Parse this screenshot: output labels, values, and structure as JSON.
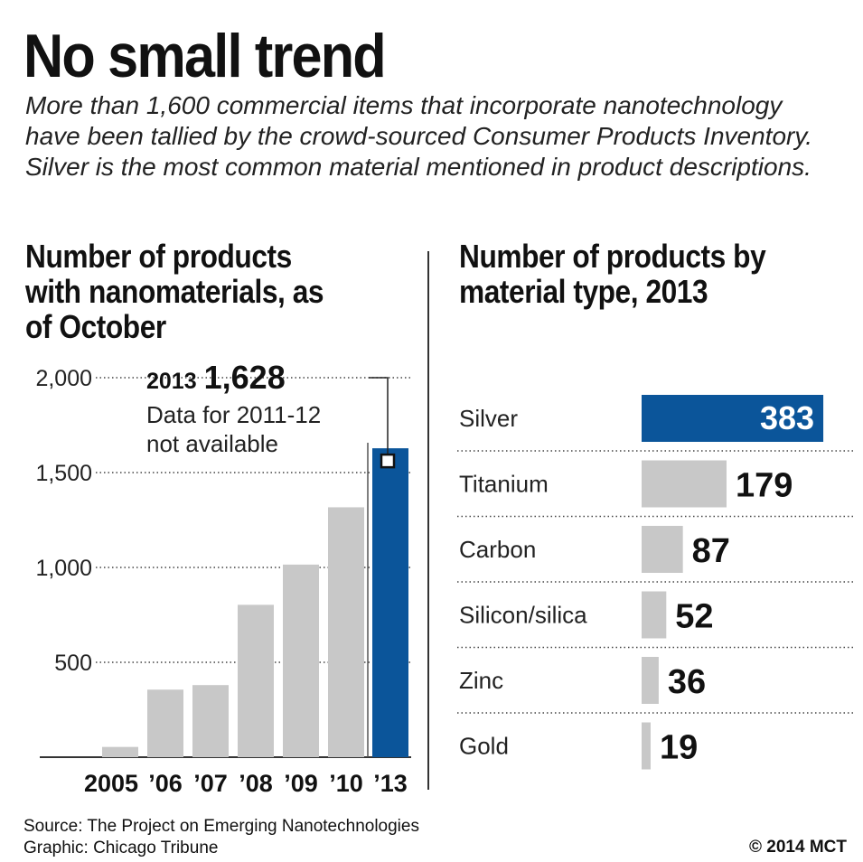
{
  "title": "No small trend",
  "subtitle": "More than 1,600 commercial items that incorporate nanotechnology have been tallied by the crowd-sourced Consumer Products Inventory. Silver is the most common material mentioned in product descriptions.",
  "source": "Source: The Project on Emerging Nanotechnologies",
  "graphic_credit": "Graphic: Chicago Tribune",
  "copyright": "© 2014 MCT",
  "colors": {
    "highlight": "#0b559a",
    "bar": "#c8c8c8",
    "text": "#111111",
    "grid": "#444444"
  },
  "chart_data": [
    {
      "type": "bar",
      "title": "Number of products with nanomaterials, as of October",
      "categories": [
        "2005",
        "’06",
        "’07",
        "’08",
        "’09",
        "’10",
        "’13"
      ],
      "values": [
        54,
        356,
        380,
        803,
        1015,
        1317,
        1628
      ],
      "highlight_category": "’13",
      "ylim": [
        0,
        2000
      ],
      "yticks": [
        500,
        1000,
        1500,
        2000
      ],
      "ytick_labels": [
        "500",
        "1,000",
        "1,500",
        "2,000"
      ],
      "grid": true,
      "annotation": {
        "year": "2013",
        "value": "1,628",
        "note_line1": "Data for 2011-12",
        "note_line2": "not available"
      }
    },
    {
      "type": "bar",
      "orientation": "horizontal",
      "title": "Number of products by material type, 2013",
      "categories": [
        "Silver",
        "Titanium",
        "Carbon",
        "Silicon/silica",
        "Zinc",
        "Gold"
      ],
      "values": [
        383,
        179,
        87,
        52,
        36,
        19
      ],
      "value_labels": [
        "383",
        "179",
        "87",
        "52",
        "36",
        "19"
      ],
      "highlight_category": "Silver",
      "xlim": [
        0,
        400
      ]
    }
  ]
}
